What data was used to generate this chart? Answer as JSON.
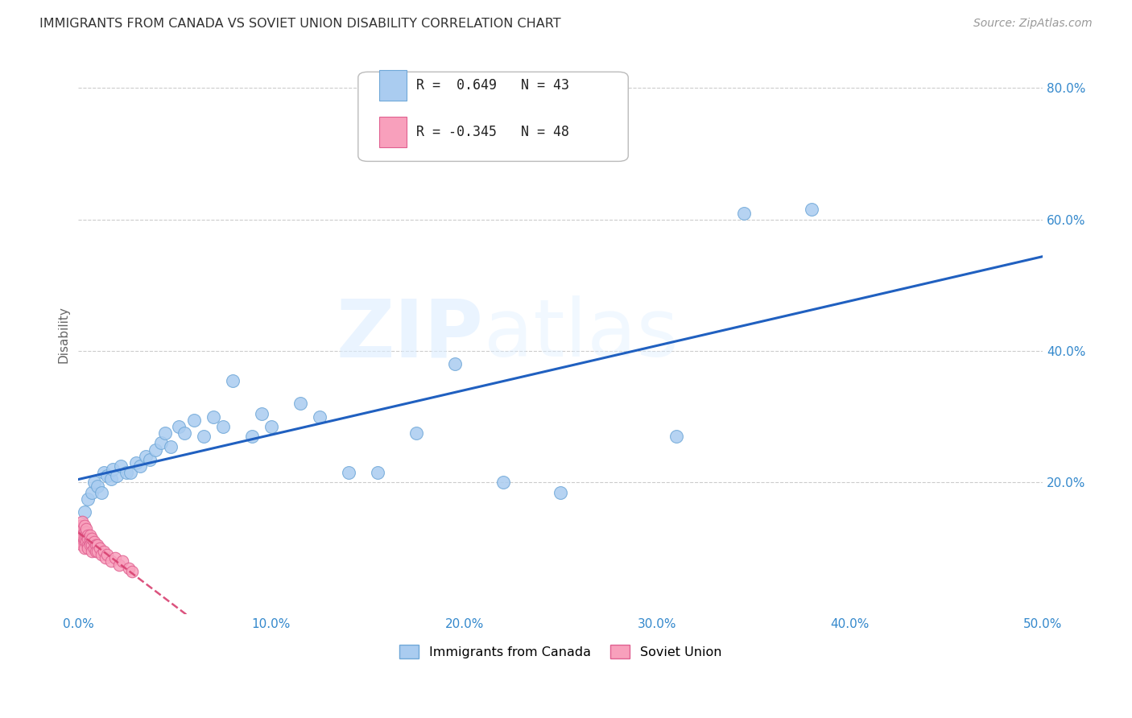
{
  "title": "IMMIGRANTS FROM CANADA VS SOVIET UNION DISABILITY CORRELATION CHART",
  "source": "Source: ZipAtlas.com",
  "ylabel_label": "Disability",
  "xlim": [
    0.0,
    0.5
  ],
  "ylim": [
    0.0,
    0.85
  ],
  "xtick_labels": [
    "0.0%",
    "10.0%",
    "20.0%",
    "30.0%",
    "40.0%",
    "50.0%"
  ],
  "xtick_vals": [
    0.0,
    0.1,
    0.2,
    0.3,
    0.4,
    0.5
  ],
  "ytick_labels": [
    "20.0%",
    "40.0%",
    "60.0%",
    "80.0%"
  ],
  "ytick_vals": [
    0.2,
    0.4,
    0.6,
    0.8
  ],
  "canada_color": "#aaccf0",
  "canada_edge_color": "#70a8d8",
  "soviet_color": "#f8a0bc",
  "soviet_edge_color": "#e06090",
  "canada_line_color": "#2060c0",
  "soviet_line_color": "#d84070",
  "canada_R": 0.649,
  "canada_N": 43,
  "soviet_R": -0.345,
  "soviet_N": 48,
  "canada_x": [
    0.003,
    0.005,
    0.007,
    0.008,
    0.01,
    0.012,
    0.013,
    0.015,
    0.017,
    0.018,
    0.02,
    0.022,
    0.025,
    0.027,
    0.03,
    0.032,
    0.035,
    0.037,
    0.04,
    0.043,
    0.045,
    0.048,
    0.052,
    0.055,
    0.06,
    0.065,
    0.07,
    0.075,
    0.08,
    0.09,
    0.095,
    0.1,
    0.115,
    0.125,
    0.14,
    0.155,
    0.175,
    0.195,
    0.22,
    0.25,
    0.31,
    0.345,
    0.38
  ],
  "canada_y": [
    0.155,
    0.175,
    0.185,
    0.2,
    0.195,
    0.185,
    0.215,
    0.21,
    0.205,
    0.22,
    0.21,
    0.225,
    0.215,
    0.215,
    0.23,
    0.225,
    0.24,
    0.235,
    0.25,
    0.26,
    0.275,
    0.255,
    0.285,
    0.275,
    0.295,
    0.27,
    0.3,
    0.285,
    0.355,
    0.27,
    0.305,
    0.285,
    0.32,
    0.3,
    0.215,
    0.215,
    0.275,
    0.38,
    0.2,
    0.185,
    0.27,
    0.61,
    0.615
  ],
  "soviet_x": [
    0.0,
    0.0,
    0.001,
    0.001,
    0.001,
    0.001,
    0.002,
    0.002,
    0.002,
    0.002,
    0.002,
    0.003,
    0.003,
    0.003,
    0.003,
    0.003,
    0.004,
    0.004,
    0.004,
    0.004,
    0.005,
    0.005,
    0.005,
    0.005,
    0.006,
    0.006,
    0.006,
    0.006,
    0.007,
    0.007,
    0.007,
    0.008,
    0.008,
    0.009,
    0.009,
    0.01,
    0.01,
    0.011,
    0.012,
    0.013,
    0.014,
    0.015,
    0.017,
    0.019,
    0.021,
    0.023,
    0.026,
    0.028
  ],
  "soviet_y": [
    0.13,
    0.115,
    0.12,
    0.135,
    0.11,
    0.125,
    0.115,
    0.13,
    0.14,
    0.105,
    0.12,
    0.11,
    0.125,
    0.135,
    0.115,
    0.1,
    0.115,
    0.125,
    0.11,
    0.13,
    0.105,
    0.12,
    0.115,
    0.1,
    0.11,
    0.115,
    0.105,
    0.12,
    0.105,
    0.115,
    0.095,
    0.11,
    0.1,
    0.105,
    0.095,
    0.105,
    0.095,
    0.1,
    0.09,
    0.095,
    0.085,
    0.09,
    0.08,
    0.085,
    0.075,
    0.08,
    0.07,
    0.065
  ],
  "legend_R_canada_text": "R =  0.649   N = 43",
  "legend_R_soviet_text": "R = -0.345   N = 48",
  "legend_canada_label": "Immigrants from Canada",
  "legend_soviet_label": "Soviet Union"
}
